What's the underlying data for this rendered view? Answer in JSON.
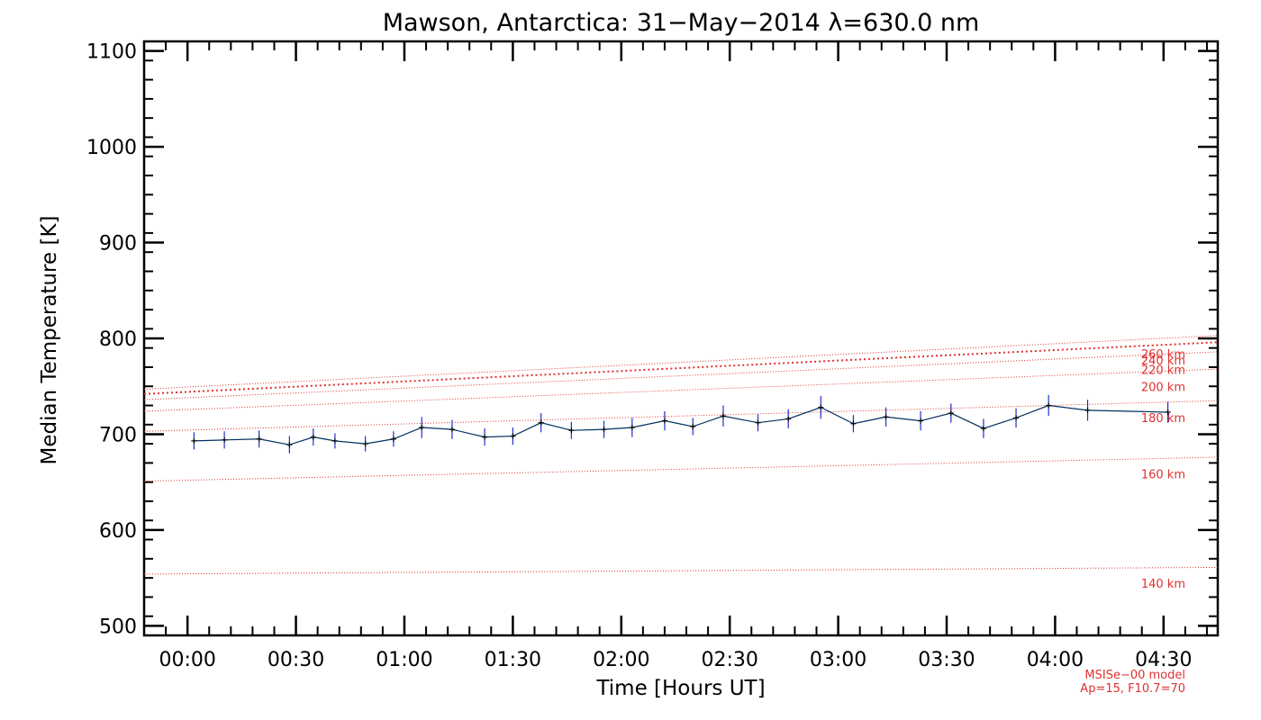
{
  "chart_data": {
    "type": "line",
    "title": "Mawson, Antarctica: 31−May−2014 λ=630.0 nm",
    "xlabel": "Time [Hours UT]",
    "ylabel": "Median Temperature [K]",
    "xlim": [
      -0.2,
      4.75
    ],
    "ylim": [
      490,
      1110
    ],
    "x_tick_labels": [
      "00:00",
      "00:30",
      "01:00",
      "01:30",
      "02:00",
      "02:30",
      "03:00",
      "03:30",
      "04:00",
      "04:30"
    ],
    "x_tick_values": [
      0,
      0.5,
      1.0,
      1.5,
      2.0,
      2.5,
      3.0,
      3.5,
      4.0,
      4.5
    ],
    "y_ticks": [
      500,
      600,
      700,
      800,
      900,
      1000,
      1100
    ],
    "colors": {
      "series": "#003060",
      "error_bars": "#2030d0",
      "model": "#e03030",
      "axes": "#000000"
    },
    "series": [
      {
        "x": [
          0.03,
          0.17,
          0.33,
          0.47,
          0.58,
          0.68,
          0.82,
          0.95,
          1.08,
          1.22,
          1.37,
          1.5,
          1.63,
          1.77,
          1.92,
          2.05,
          2.2,
          2.33,
          2.47,
          2.63,
          2.77,
          2.92,
          3.07,
          3.22,
          3.38,
          3.52,
          3.67,
          3.82,
          3.97,
          4.15,
          4.52
        ],
        "y": [
          693,
          694,
          695,
          689,
          697,
          693,
          690,
          695,
          707,
          705,
          697,
          698,
          712,
          704,
          705,
          707,
          714,
          708,
          719,
          712,
          716,
          728,
          711,
          718,
          714,
          722,
          706,
          717,
          730,
          725,
          723
        ],
        "err": [
          9,
          9,
          9,
          9,
          9,
          8,
          8,
          8,
          11,
          10,
          9,
          9,
          10,
          9,
          9,
          10,
          10,
          9,
          11,
          9,
          10,
          12,
          9,
          10,
          10,
          10,
          10,
          10,
          11,
          11,
          11
        ]
      }
    ],
    "model_curves": [
      {
        "label": "260 km",
        "x": [
          -0.2,
          4.75
        ],
        "y": [
          747,
          803
        ]
      },
      {
        "label": "240 km",
        "x": [
          -0.2,
          4.75
        ],
        "y": [
          742,
          796
        ]
      },
      {
        "label": "220 km",
        "x": [
          -0.2,
          4.75
        ],
        "y": [
          736,
          786
        ]
      },
      {
        "label": "200 km",
        "x": [
          -0.2,
          4.75
        ],
        "y": [
          724,
          768
        ]
      },
      {
        "label": "180 km",
        "x": [
          -0.2,
          4.75
        ],
        "y": [
          703,
          735
        ]
      },
      {
        "label": "160 km",
        "x": [
          -0.2,
          4.75
        ],
        "y": [
          651,
          676
        ]
      },
      {
        "label": "140 km",
        "x": [
          -0.2,
          4.75
        ],
        "y": [
          554,
          561
        ]
      }
    ],
    "model_note": [
      "MSISe−00 model",
      "Ap=15, F10.7=70"
    ]
  }
}
